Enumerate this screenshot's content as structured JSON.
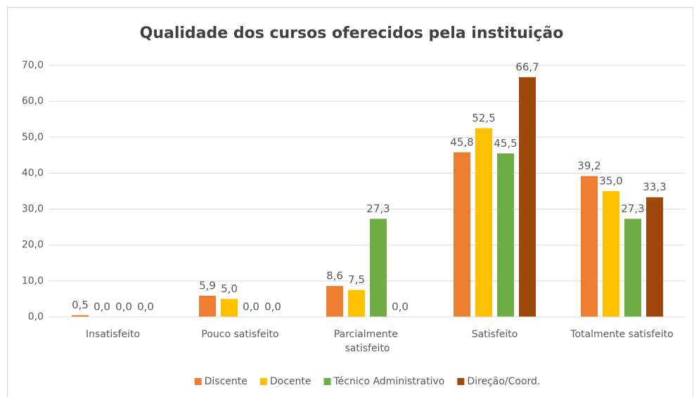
{
  "chart_data": {
    "type": "bar",
    "title": "Qualidade dos cursos oferecidos pela instituição",
    "categories": [
      "Insatisfeito",
      "Pouco satisfeito",
      "Parcialmente satisfeito",
      "Satisfeito",
      "Totalmente satisfeito"
    ],
    "series": [
      {
        "name": "Discente",
        "color": "#ed7d31",
        "values": [
          0.5,
          5.9,
          8.6,
          45.8,
          39.2
        ],
        "value_labels": [
          "0,5",
          "5,9",
          "8,6",
          "45,8",
          "39,2"
        ]
      },
      {
        "name": "Docente",
        "color": "#ffc000",
        "values": [
          0.0,
          5.0,
          7.5,
          52.5,
          35.0
        ],
        "value_labels": [
          "0,0",
          "5,0",
          "7,5",
          "52,5",
          "35,0"
        ]
      },
      {
        "name": "Técnico Administrativo",
        "color": "#70ad47",
        "values": [
          0.0,
          0.0,
          27.3,
          45.5,
          27.3
        ],
        "value_labels": [
          "0,0",
          "0,0",
          "27,3",
          "45,5",
          "27,3"
        ]
      },
      {
        "name": "Direção/Coord.",
        "color": "#9e480e",
        "values": [
          0.0,
          0.0,
          0.0,
          66.7,
          33.3
        ],
        "value_labels": [
          "0,0",
          "0,0",
          "0,0",
          "66,7",
          "33,3"
        ]
      }
    ],
    "ylim": [
      0,
      70
    ],
    "yticks": [
      {
        "value": 0,
        "label": "0,0"
      },
      {
        "value": 10,
        "label": "10,0"
      },
      {
        "value": 20,
        "label": "20,0"
      },
      {
        "value": 30,
        "label": "30,0"
      },
      {
        "value": 40,
        "label": "40,0"
      },
      {
        "value": 50,
        "label": "50,0"
      },
      {
        "value": 60,
        "label": "60,0"
      },
      {
        "value": 70,
        "label": "70,0"
      }
    ],
    "grid": true,
    "legend": "bottom"
  }
}
